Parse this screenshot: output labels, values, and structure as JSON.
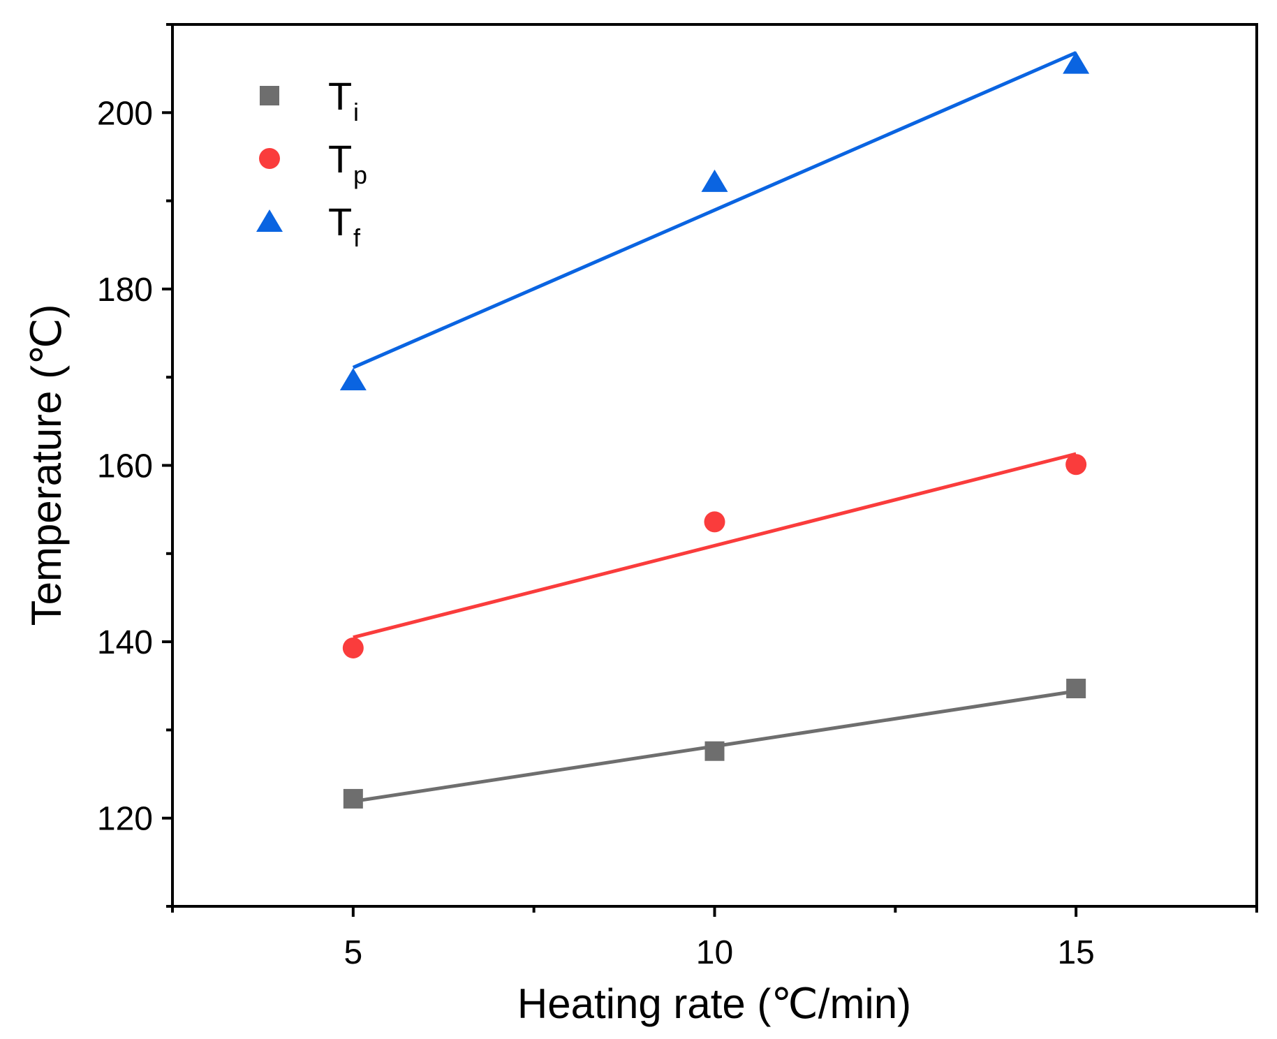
{
  "chart_data": {
    "type": "scatter",
    "title": "",
    "xlabel": "Heating rate (℃/min)",
    "ylabel": "Temperature (℃)",
    "xlim": [
      2.5,
      17.5
    ],
    "ylim": [
      110,
      210
    ],
    "xticks": [
      5,
      10,
      15
    ],
    "x_minor_ticks": [
      2.5,
      7.5,
      12.5,
      17.5
    ],
    "yticks": [
      120,
      140,
      160,
      180,
      200
    ],
    "y_minor_ticks": [
      110,
      130,
      150,
      170,
      190,
      210
    ],
    "x": [
      5,
      10,
      15
    ],
    "series": [
      {
        "name": "Ti",
        "label_main": "T",
        "label_sub": "i",
        "marker": "square",
        "color": "#6e6e6e",
        "values": [
          122.2,
          127.6,
          134.7
        ],
        "fit": {
          "x": [
            5,
            15
          ],
          "y": [
            121.9,
            134.4
          ]
        }
      },
      {
        "name": "Tp",
        "label_main": "T",
        "label_sub": "p",
        "marker": "circle",
        "color": "#fa3c3c",
        "values": [
          139.3,
          153.6,
          160.1
        ],
        "fit": {
          "x": [
            5,
            15
          ],
          "y": [
            140.5,
            161.3
          ]
        }
      },
      {
        "name": "Tf",
        "label_main": "T",
        "label_sub": "f",
        "marker": "triangle",
        "color": "#0a64e1",
        "values": [
          169.7,
          192.2,
          205.6
        ],
        "fit": {
          "x": [
            5,
            15
          ],
          "y": [
            171.1,
            206.8
          ]
        }
      }
    ],
    "legend": "top-left"
  }
}
